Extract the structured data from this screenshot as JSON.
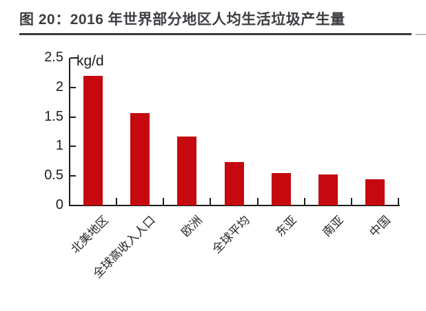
{
  "figure": {
    "title": "图 20：2016 年世界部分地区人均生活垃圾产生量"
  },
  "chart_data": {
    "type": "bar",
    "title": "图 20：2016 年世界部分地区人均生活垃圾产生量",
    "unit_label": "kg/d",
    "categories": [
      "北美地区",
      "全球高收入人口",
      "欧洲",
      "全球平均",
      "东亚",
      "南亚",
      "中国"
    ],
    "values": [
      2.2,
      1.57,
      1.17,
      0.74,
      0.55,
      0.52,
      0.44
    ],
    "xlabel": "",
    "ylabel": "kg/d",
    "ylim": [
      0,
      2.5
    ],
    "yticks": [
      0,
      0.5,
      1,
      1.5,
      2,
      2.5
    ],
    "ytick_labels": [
      "0",
      "0.5",
      "1",
      "1.5",
      "2",
      "2.5"
    ],
    "grid": false,
    "legend": false,
    "bar_color": "#c6090f"
  },
  "colors": {
    "bar": "#c6090f",
    "title_text": "#3d3e42",
    "underline": "#3a3a3c",
    "axis": "#1c1c1c",
    "background": "#ffffff"
  }
}
